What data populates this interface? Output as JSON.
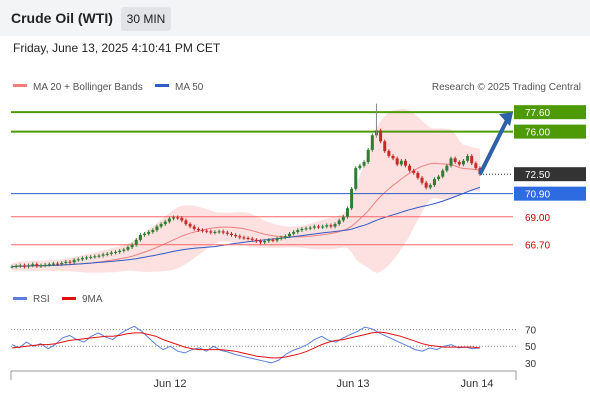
{
  "header": {
    "title": "Crude Oil (WTI)",
    "timeframe": "30 MIN"
  },
  "timestamp": "Friday, June 13, 2025 4:10:41 PM CET",
  "legend": {
    "ma20_bb": "MA 20 + Bollinger Bands",
    "ma50": "MA 50"
  },
  "credit": "Research © 2025 Trading Central",
  "colors": {
    "resistance": "#4e9a06",
    "support": "#ff6666",
    "ma50": "#2f5cc4",
    "ma20": "#f08080",
    "band": "#fde0e0",
    "arrow": "#2f61a8",
    "up_candle": "#2e7d32",
    "down_candle": "#c62828",
    "rsi": "#5b7fdc",
    "rsi_ma": "#e01010"
  },
  "chart_data": [
    {
      "type": "candlestick",
      "title": "Crude Oil (WTI)",
      "timeframe": "30 MIN",
      "x_ticks": [
        "Jun 12",
        "Jun 13",
        "Jun 14"
      ],
      "ylim": [
        63.8,
        78.6
      ],
      "grid": false,
      "levels": [
        {
          "value": 77.6,
          "label": "77.60",
          "type": "resistance"
        },
        {
          "value": 76.0,
          "label": "76.00",
          "type": "resistance"
        },
        {
          "value": 72.5,
          "label": "72.50",
          "type": "last_price"
        },
        {
          "value": 70.9,
          "label": "70.90",
          "type": "pivot"
        },
        {
          "value": 69.0,
          "label": "69.00",
          "type": "support"
        },
        {
          "value": 66.7,
          "label": "66.70",
          "type": "support"
        }
      ],
      "forecast": {
        "from": 72.5,
        "to": 77.6,
        "direction": "up"
      },
      "close_series": [
        64.9,
        64.95,
        65.0,
        64.9,
        65.0,
        65.1,
        64.95,
        65.0,
        65.05,
        65.1,
        65.15,
        65.1,
        65.2,
        65.3,
        65.25,
        65.45,
        65.5,
        65.6,
        65.65,
        65.7,
        65.75,
        65.8,
        65.9,
        65.95,
        66.05,
        66.1,
        66.2,
        66.3,
        66.5,
        66.7,
        67.1,
        67.5,
        67.6,
        67.75,
        67.9,
        68.2,
        68.4,
        68.6,
        68.85,
        68.95,
        68.9,
        68.7,
        68.4,
        68.2,
        68.0,
        67.9,
        67.85,
        67.8,
        67.7,
        67.75,
        67.8,
        67.7,
        67.6,
        67.5,
        67.4,
        67.3,
        67.25,
        67.2,
        67.1,
        67.0,
        66.9,
        67.0,
        67.1,
        67.05,
        67.2,
        67.3,
        67.4,
        67.6,
        67.75,
        67.9,
        68.0,
        68.05,
        68.1,
        68.2,
        68.15,
        68.2,
        68.3,
        68.2,
        68.4,
        68.7,
        69.0,
        69.7,
        71.3,
        73.0,
        73.2,
        73.5,
        74.5,
        75.7,
        76.1,
        75.2,
        74.4,
        74.0,
        73.8,
        73.3,
        73.6,
        73.2,
        72.8,
        72.6,
        72.2,
        71.8,
        71.4,
        71.6,
        72.1,
        72.3,
        72.8,
        73.2,
        73.8,
        73.5,
        73.3,
        73.6,
        74.0,
        73.4,
        73.0,
        72.5
      ],
      "series": [
        {
          "name": "MA 20 + Bollinger Bands"
        },
        {
          "name": "MA 50"
        }
      ]
    },
    {
      "type": "line",
      "ylim": [
        25,
        90
      ],
      "y_ticks": [
        "70",
        "50",
        "30"
      ],
      "series": [
        {
          "name": "RSI",
          "values": [
            52,
            48,
            55,
            50,
            53,
            47,
            52,
            60,
            63,
            58,
            55,
            62,
            66,
            61,
            58,
            65,
            70,
            74,
            68,
            60,
            52,
            46,
            50,
            44,
            42,
            46,
            48,
            44,
            50,
            45,
            43,
            40,
            38,
            36,
            34,
            32,
            30,
            33,
            40,
            45,
            48,
            52,
            58,
            62,
            57,
            55,
            60,
            64,
            68,
            73,
            71,
            66,
            62,
            58,
            54,
            50,
            46,
            44,
            48,
            46,
            50,
            52,
            48,
            49,
            47,
            48
          ]
        },
        {
          "name": "9MA",
          "values": [
            48,
            49,
            50,
            51,
            52,
            52,
            53,
            55,
            57,
            58,
            59,
            60,
            61,
            62,
            62,
            63,
            65,
            66,
            66,
            64,
            62,
            58,
            55,
            52,
            49,
            47,
            46,
            46,
            46,
            46,
            45,
            44,
            42,
            40,
            38,
            37,
            36,
            36,
            37,
            39,
            41,
            44,
            48,
            52,
            55,
            57,
            58,
            60,
            62,
            64,
            66,
            67,
            66,
            64,
            62,
            59,
            56,
            53,
            51,
            50,
            49,
            49,
            49,
            49,
            49,
            48
          ]
        }
      ]
    }
  ]
}
